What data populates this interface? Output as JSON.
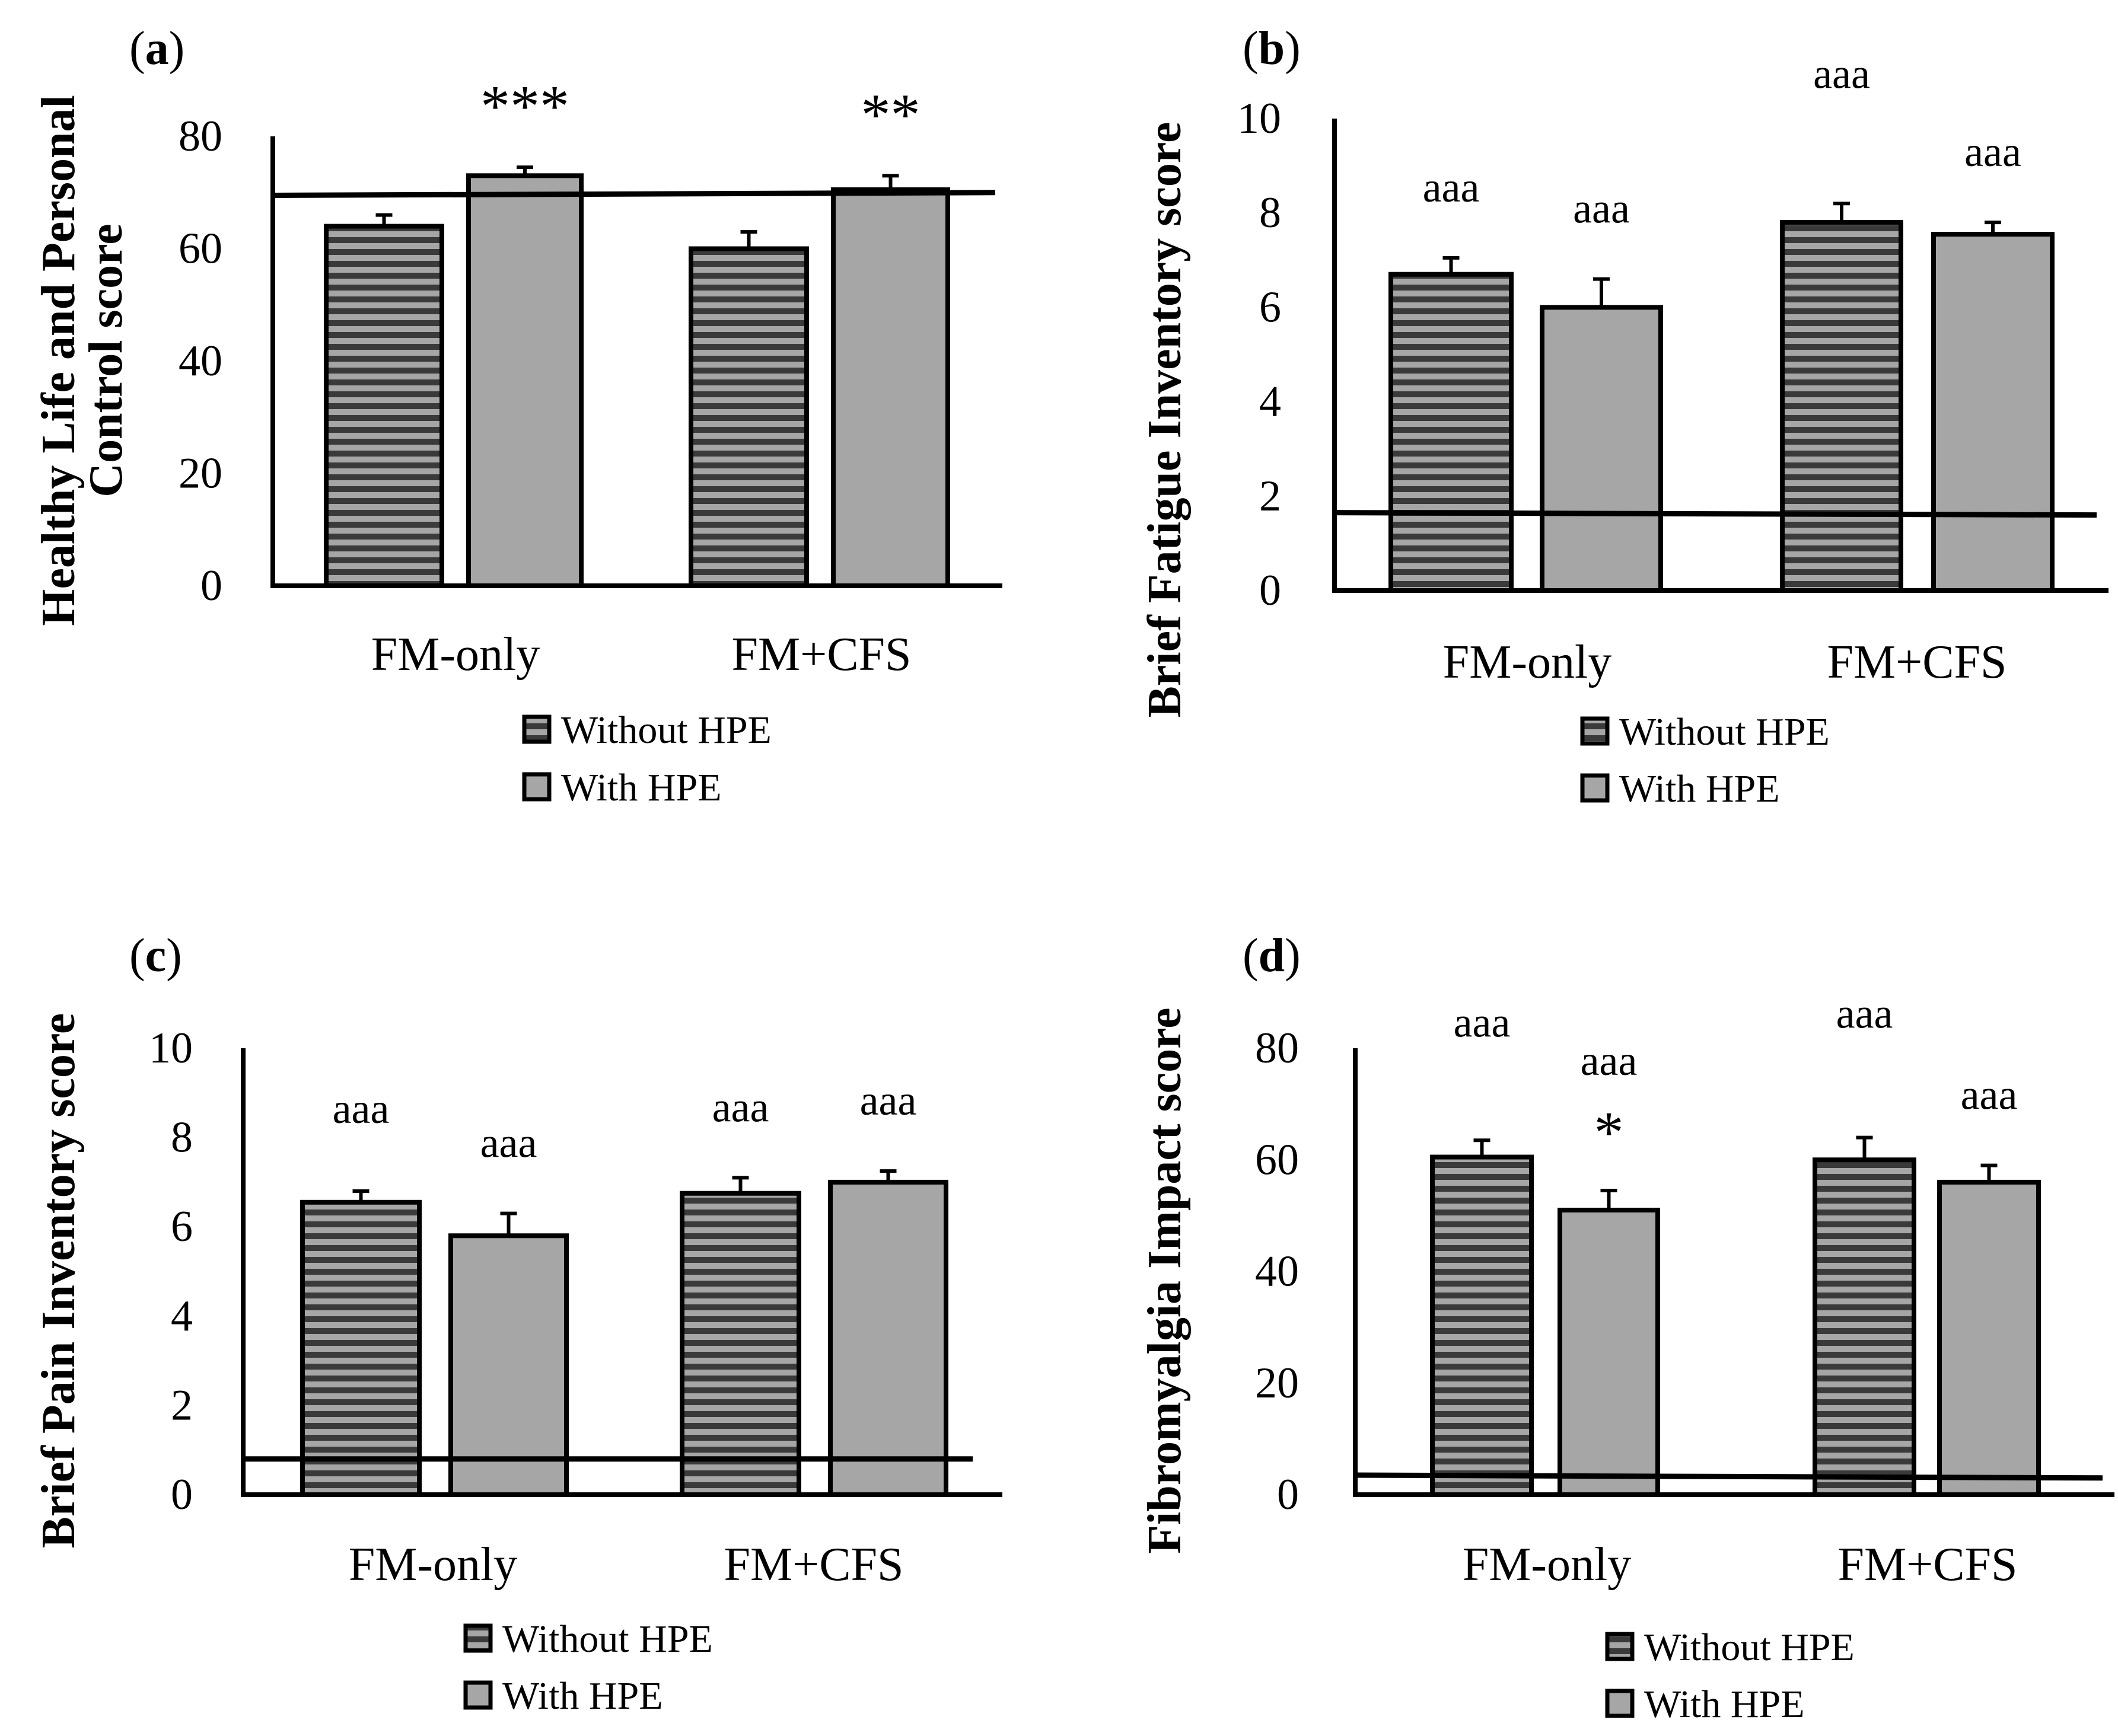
{
  "colors": {
    "with_hpe_fill": "#a6a6a6",
    "without_hpe_fill": "#a6a6a6",
    "without_hpe_stripe": "#3a3a3a",
    "axis": "#000000"
  },
  "chart_data": [
    {
      "type": "bar",
      "panel": "a",
      "panel_label": "a",
      "ylabel_lines": [
        "Healthy Life and Personal",
        "Control score"
      ],
      "categories": [
        "FM-only",
        "FM+CFS"
      ],
      "ylim": [
        0,
        80
      ],
      "yticks": [
        "0",
        "20",
        "40",
        "60",
        "80"
      ],
      "series": [
        {
          "name": "Without HPE",
          "values": [
            64,
            60
          ],
          "errors": [
            2,
            3
          ],
          "annotations": [
            "",
            ""
          ]
        },
        {
          "name": "With HPE",
          "values": [
            73,
            70.5
          ],
          "errors": [
            1.5,
            2.5
          ],
          "annotations": [
            "***",
            "**"
          ]
        }
      ],
      "reference_line": [
        69.5,
        70
      ],
      "legend": [
        "Without HPE",
        "With HPE"
      ]
    },
    {
      "type": "bar",
      "panel": "b",
      "panel_label": "b",
      "ylabel_lines": [
        "Brief Fatigue Inventory score"
      ],
      "categories": [
        "FM-only",
        "FM+CFS"
      ],
      "ylim": [
        0,
        10
      ],
      "yticks": [
        "0",
        "2",
        "4",
        "6",
        "8",
        "10"
      ],
      "series": [
        {
          "name": "Without HPE",
          "values": [
            6.7,
            7.8
          ],
          "errors": [
            0.35,
            0.4
          ],
          "annotations": [
            "aaa",
            "aaa"
          ]
        },
        {
          "name": "With HPE",
          "values": [
            6.0,
            7.55
          ],
          "errors": [
            0.6,
            0.25
          ],
          "annotations": [
            "aaa",
            "aaa"
          ]
        }
      ],
      "reference_line": [
        1.65,
        1.6
      ],
      "legend": [
        "Without HPE",
        "With HPE"
      ]
    },
    {
      "type": "bar",
      "panel": "c",
      "panel_label": "c",
      "ylabel_lines": [
        "Brief Pain Inventory score"
      ],
      "categories": [
        "FM-only",
        "FM+CFS"
      ],
      "ylim": [
        0,
        10
      ],
      "yticks": [
        "0",
        "2",
        "4",
        "6",
        "8",
        "10"
      ],
      "series": [
        {
          "name": "Without HPE",
          "values": [
            6.55,
            6.75
          ],
          "errors": [
            0.25,
            0.35
          ],
          "annotations": [
            "aaa",
            "aaa"
          ]
        },
        {
          "name": "With HPE",
          "values": [
            5.8,
            7.0
          ],
          "errors": [
            0.5,
            0.25
          ],
          "annotations": [
            "aaa",
            "aaa"
          ]
        }
      ],
      "reference_line": [
        0.8,
        0.8
      ],
      "legend": [
        "Without HPE",
        "With HPE"
      ]
    },
    {
      "type": "bar",
      "panel": "d",
      "panel_label": "d",
      "ylabel_lines": [
        "Fibromyalgia Impact score"
      ],
      "categories": [
        "FM-only",
        "FM+CFS"
      ],
      "ylim": [
        0,
        80
      ],
      "yticks": [
        "0",
        "20",
        "40",
        "60",
        "80"
      ],
      "series": [
        {
          "name": "Without HPE",
          "values": [
            60.5,
            60
          ],
          "errors": [
            3,
            4
          ],
          "annotations": [
            "aaa",
            "aaa"
          ]
        },
        {
          "name": "With HPE",
          "values": [
            51,
            56
          ],
          "errors": [
            3.5,
            3
          ],
          "annotations": [
            "aaa *",
            "aaa"
          ]
        }
      ],
      "reference_line": [
        3.5,
        3
      ],
      "legend": [
        "Without HPE",
        "With HPE"
      ]
    }
  ]
}
